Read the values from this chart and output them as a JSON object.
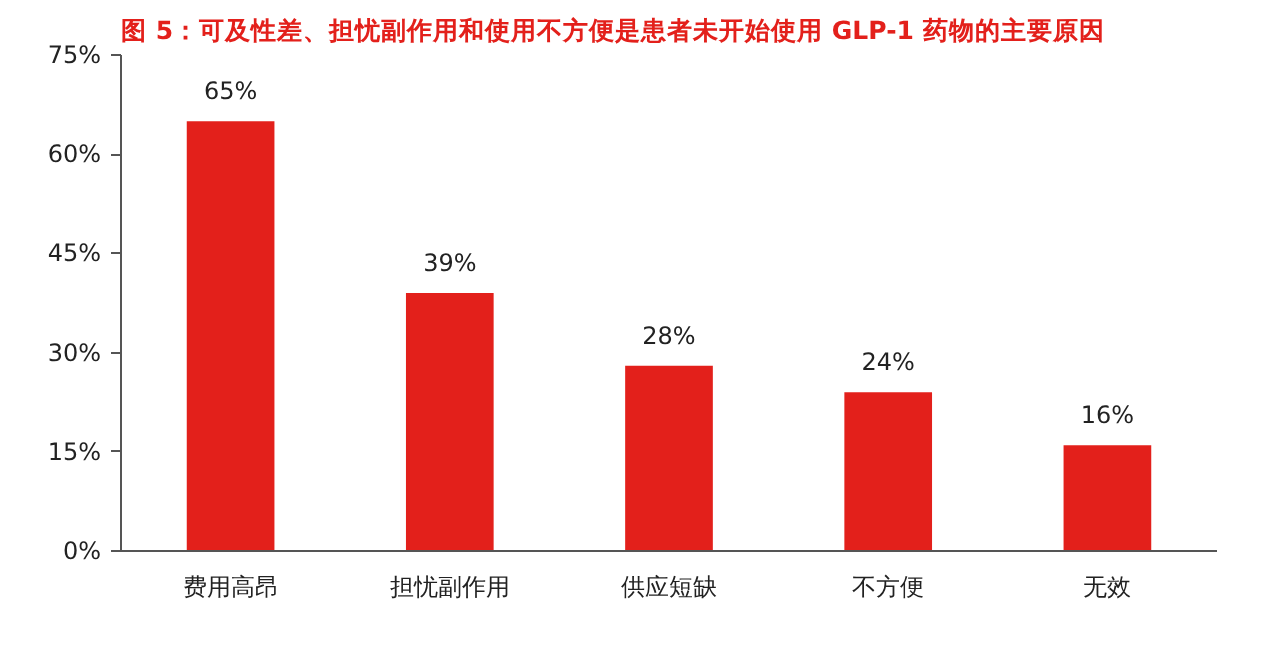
{
  "chart_data": {
    "type": "bar",
    "title": "图 5：可及性差、担忧副作用和使用不方便是患者未开始使用 GLP-1 药物的主要原因",
    "categories": [
      "费用高昂",
      "担忧副作用",
      "供应短缺",
      "不方便",
      "无效"
    ],
    "values": [
      65,
      39,
      28,
      24,
      16
    ],
    "color": "#e3201b",
    "value_labels": [
      "65%",
      "39%",
      "28%",
      "24%",
      "16%"
    ],
    "ylim": [
      0,
      75
    ],
    "yticks": [
      {
        "value": 0,
        "label": "0%"
      },
      {
        "value": 15,
        "label": "15%"
      },
      {
        "value": 30,
        "label": "30%"
      },
      {
        "value": 45,
        "label": "45%"
      },
      {
        "value": 60,
        "label": "60%"
      },
      {
        "value": 75,
        "label": "75%"
      }
    ],
    "grid": false
  }
}
